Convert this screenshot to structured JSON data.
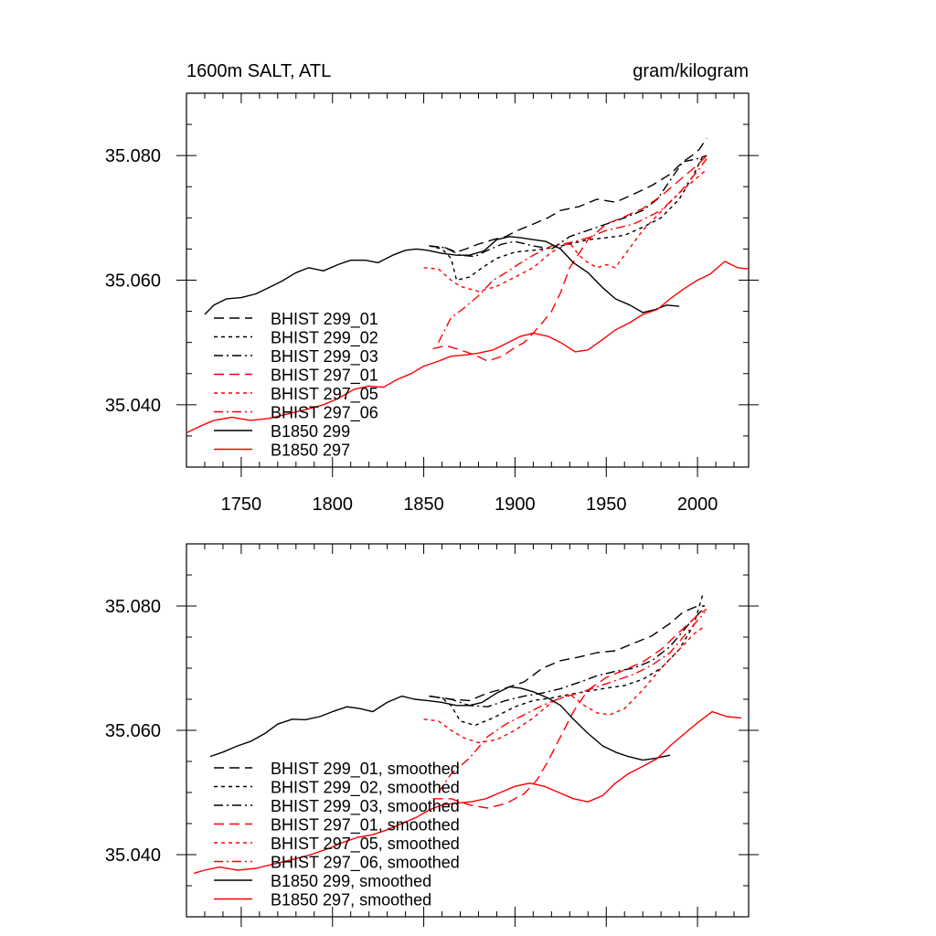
{
  "chart_data": [
    {
      "type": "line",
      "title": "1600m SALT, ATL",
      "units": "gram/kilogram",
      "xlim": [
        1720,
        2028
      ],
      "ylim": [
        35.03,
        35.09
      ],
      "xticks": [
        1750,
        1800,
        1850,
        1900,
        1950,
        2000
      ],
      "yticks": [
        35.04,
        35.06,
        35.08
      ],
      "ytick_labels": [
        "35.040",
        "35.060",
        "35.080"
      ],
      "show_xtick_labels": true,
      "legend_position": "bottom-left",
      "series": [
        {
          "name": "BHIST 299_01",
          "color": "#000000",
          "dash": "long",
          "x": [
            1853,
            1862,
            1868,
            1873,
            1880,
            1888,
            1895,
            1900,
            1910,
            1918,
            1925,
            1935,
            1945,
            1955,
            1965,
            1975,
            1985,
            1992,
            1997,
            2001,
            2005
          ],
          "y": [
            35.0655,
            35.0652,
            35.0645,
            35.065,
            35.0658,
            35.0665,
            35.067,
            35.0678,
            35.069,
            35.07,
            35.0712,
            35.0718,
            35.073,
            35.0725,
            35.0738,
            35.0752,
            35.077,
            35.079,
            35.08,
            35.081,
            35.0828
          ]
        },
        {
          "name": "BHIST 299_02",
          "color": "#000000",
          "dash": "short",
          "x": [
            1853,
            1860,
            1865,
            1868,
            1875,
            1882,
            1890,
            1900,
            1910,
            1920,
            1930,
            1940,
            1950,
            1960,
            1970,
            1980,
            1990,
            1998,
            2003
          ],
          "y": [
            35.0655,
            35.065,
            35.0635,
            35.06,
            35.0605,
            35.062,
            35.0635,
            35.0645,
            35.0648,
            35.0652,
            35.0658,
            35.0665,
            35.0668,
            35.0672,
            35.0685,
            35.07,
            35.073,
            35.077,
            35.08
          ]
        },
        {
          "name": "BHIST 299_03",
          "color": "#000000",
          "dash": "dashdot",
          "x": [
            1853,
            1862,
            1870,
            1878,
            1885,
            1893,
            1900,
            1910,
            1920,
            1930,
            1940,
            1950,
            1960,
            1970,
            1978,
            1985,
            1992,
            2000,
            2005
          ],
          "y": [
            35.0655,
            35.0652,
            35.064,
            35.0638,
            35.0648,
            35.0658,
            35.0662,
            35.0655,
            35.065,
            35.067,
            35.068,
            35.069,
            35.07,
            35.0712,
            35.073,
            35.076,
            35.079,
            35.0795,
            35.08
          ]
        },
        {
          "name": "BHIST 297_01",
          "color": "#ff0000",
          "dash": "long",
          "x": [
            1855,
            1862,
            1870,
            1878,
            1885,
            1893,
            1900,
            1905,
            1910,
            1915,
            1920,
            1925,
            1930,
            1940,
            1950,
            1960,
            1970,
            1980,
            1990,
            2000,
            2005
          ],
          "y": [
            35.049,
            35.0495,
            35.0488,
            35.048,
            35.047,
            35.0478,
            35.0492,
            35.05,
            35.0515,
            35.0532,
            35.055,
            35.058,
            35.062,
            35.0665,
            35.069,
            35.0702,
            35.0715,
            35.0735,
            35.076,
            35.0785,
            35.08
          ]
        },
        {
          "name": "BHIST 297_05",
          "color": "#ff0000",
          "dash": "short",
          "x": [
            1850,
            1858,
            1865,
            1870,
            1880,
            1890,
            1900,
            1910,
            1920,
            1930,
            1935,
            1940,
            1945,
            1950,
            1955,
            1960,
            1970,
            1980,
            1990,
            1998,
            2004
          ],
          "y": [
            35.062,
            35.0618,
            35.06,
            35.059,
            35.0582,
            35.059,
            35.0605,
            35.062,
            35.0645,
            35.066,
            35.064,
            35.0628,
            35.062,
            35.0625,
            35.062,
            35.064,
            35.068,
            35.071,
            35.074,
            35.076,
            35.0775
          ]
        },
        {
          "name": "BHIST 297_06",
          "color": "#ff0000",
          "dash": "dashdot",
          "x": [
            1858,
            1865,
            1872,
            1880,
            1888,
            1895,
            1900,
            1910,
            1920,
            1930,
            1940,
            1950,
            1958,
            1965,
            1972,
            1980,
            1990,
            2000,
            2005
          ],
          "y": [
            35.05,
            35.054,
            35.0555,
            35.0575,
            35.06,
            35.0612,
            35.0622,
            35.064,
            35.0655,
            35.066,
            35.0668,
            35.068,
            35.0685,
            35.069,
            35.07,
            35.0712,
            35.074,
            35.0775,
            35.0795
          ]
        },
        {
          "name": "B1850 299",
          "color": "#000000",
          "dash": "solid",
          "x": [
            1730,
            1735,
            1742,
            1750,
            1758,
            1765,
            1772,
            1780,
            1787,
            1795,
            1803,
            1810,
            1818,
            1825,
            1833,
            1840,
            1846,
            1852,
            1860,
            1868,
            1875,
            1883,
            1890,
            1897,
            1903,
            1910,
            1917,
            1925,
            1932,
            1940,
            1948,
            1955,
            1963,
            1970,
            1977,
            1983,
            1990
          ],
          "y": [
            35.0545,
            35.056,
            35.057,
            35.0572,
            35.0578,
            35.0588,
            35.0598,
            35.0612,
            35.062,
            35.0615,
            35.0625,
            35.0632,
            35.0632,
            35.0628,
            35.064,
            35.0648,
            35.065,
            35.0648,
            35.0643,
            35.064,
            35.064,
            35.0647,
            35.0665,
            35.067,
            35.0668,
            35.0665,
            35.0662,
            35.065,
            35.0628,
            35.0612,
            35.0588,
            35.057,
            35.056,
            35.0548,
            35.0553,
            35.056,
            35.0558
          ]
        },
        {
          "name": "B1850 297",
          "color": "#ff0000",
          "dash": "solid",
          "x": [
            1720,
            1727,
            1735,
            1745,
            1755,
            1765,
            1775,
            1785,
            1795,
            1803,
            1812,
            1820,
            1828,
            1835,
            1843,
            1850,
            1858,
            1865,
            1873,
            1880,
            1888,
            1895,
            1903,
            1910,
            1918,
            1925,
            1933,
            1940,
            1948,
            1955,
            1963,
            1970,
            1978,
            1985,
            1992,
            2000,
            2007,
            2015,
            2022,
            2028
          ],
          "y": [
            35.0355,
            35.0365,
            35.0375,
            35.038,
            35.0375,
            35.0378,
            35.0385,
            35.0392,
            35.04,
            35.041,
            35.0425,
            35.043,
            35.0428,
            35.044,
            35.045,
            35.0462,
            35.047,
            35.0478,
            35.048,
            35.0483,
            35.0488,
            35.0498,
            35.051,
            35.0515,
            35.051,
            35.05,
            35.0485,
            35.0488,
            35.0505,
            35.052,
            35.0532,
            35.0545,
            35.0553,
            35.057,
            35.0585,
            35.06,
            35.061,
            35.063,
            35.062,
            35.0618
          ]
        }
      ]
    },
    {
      "type": "line",
      "title": "",
      "units": "",
      "xlim": [
        1720,
        2028
      ],
      "ylim": [
        35.03,
        35.09
      ],
      "xticks": [
        1750,
        1800,
        1850,
        1900,
        1950,
        2000
      ],
      "yticks": [
        35.04,
        35.06,
        35.08
      ],
      "ytick_labels": [
        "35.040",
        "35.060",
        "35.080"
      ],
      "show_xtick_labels": false,
      "legend_position": "bottom-left",
      "series": [
        {
          "name": "BHIST 299_01, smoothed",
          "color": "#000000",
          "dash": "long",
          "x": [
            1853,
            1865,
            1875,
            1885,
            1895,
            1905,
            1915,
            1925,
            1935,
            1945,
            1955,
            1965,
            1975,
            1985,
            1992,
            2000,
            2004
          ],
          "y": [
            35.0655,
            35.065,
            35.0648,
            35.066,
            35.0668,
            35.0678,
            35.07,
            35.0712,
            35.0718,
            35.0725,
            35.0728,
            35.074,
            35.0752,
            35.0772,
            35.079,
            35.08,
            35.08
          ]
        },
        {
          "name": "BHIST 299_02, smoothed",
          "color": "#000000",
          "dash": "short",
          "x": [
            1853,
            1860,
            1865,
            1870,
            1878,
            1888,
            1900,
            1910,
            1920,
            1930,
            1940,
            1950,
            1960,
            1970,
            1980,
            1990,
            1998,
            2003
          ],
          "y": [
            35.0655,
            35.0652,
            35.064,
            35.0615,
            35.0608,
            35.062,
            35.0638,
            35.0648,
            35.0652,
            35.0658,
            35.0663,
            35.0668,
            35.0672,
            35.0682,
            35.07,
            35.073,
            35.077,
            35.082
          ]
        },
        {
          "name": "BHIST 299_03, smoothed",
          "color": "#000000",
          "dash": "dashdot",
          "x": [
            1853,
            1865,
            1875,
            1885,
            1895,
            1905,
            1915,
            1925,
            1935,
            1945,
            1955,
            1965,
            1975,
            1985,
            1995,
            2003
          ],
          "y": [
            35.0655,
            35.065,
            35.064,
            35.0638,
            35.0648,
            35.0655,
            35.066,
            35.0667,
            35.0677,
            35.0688,
            35.0695,
            35.07,
            35.0712,
            35.0735,
            35.077,
            35.0795
          ]
        },
        {
          "name": "BHIST 297_01, smoothed",
          "color": "#ff0000",
          "dash": "long",
          "x": [
            1855,
            1865,
            1875,
            1885,
            1895,
            1905,
            1912,
            1918,
            1925,
            1932,
            1940,
            1950,
            1960,
            1970,
            1980,
            1990,
            2000,
            2005
          ],
          "y": [
            35.049,
            35.049,
            35.048,
            35.0475,
            35.0482,
            35.0498,
            35.052,
            35.055,
            35.059,
            35.063,
            35.0665,
            35.0685,
            35.0697,
            35.071,
            35.073,
            35.0758,
            35.0785,
            35.0795
          ]
        },
        {
          "name": "BHIST 297_05, smoothed",
          "color": "#ff0000",
          "dash": "short",
          "x": [
            1850,
            1858,
            1865,
            1872,
            1880,
            1890,
            1900,
            1910,
            1920,
            1930,
            1938,
            1945,
            1952,
            1960,
            1970,
            1980,
            1990,
            1998,
            2004
          ],
          "y": [
            35.0618,
            35.0615,
            35.06,
            35.0588,
            35.058,
            35.0585,
            35.06,
            35.062,
            35.0645,
            35.0658,
            35.064,
            35.0628,
            35.0625,
            35.0635,
            35.0665,
            35.07,
            35.073,
            35.0755,
            35.0768
          ]
        },
        {
          "name": "BHIST 297_06, smoothed",
          "color": "#ff0000",
          "dash": "dashdot",
          "x": [
            1858,
            1865,
            1875,
            1885,
            1895,
            1905,
            1915,
            1925,
            1935,
            1945,
            1955,
            1965,
            1975,
            1985,
            1995,
            2004
          ],
          "y": [
            35.05,
            35.053,
            35.0555,
            35.059,
            35.061,
            35.0625,
            35.064,
            35.0652,
            35.066,
            35.067,
            35.068,
            35.069,
            35.0705,
            35.0725,
            35.076,
            35.079
          ]
        },
        {
          "name": "B1850 299, smoothed",
          "color": "#000000",
          "dash": "solid",
          "x": [
            1733,
            1740,
            1748,
            1755,
            1763,
            1770,
            1778,
            1785,
            1793,
            1800,
            1808,
            1815,
            1822,
            1830,
            1838,
            1845,
            1852,
            1860,
            1868,
            1875,
            1882,
            1890,
            1897,
            1903,
            1910,
            1918,
            1925,
            1932,
            1940,
            1948,
            1955,
            1962,
            1970,
            1977,
            1985
          ],
          "y": [
            35.0558,
            35.0565,
            35.0575,
            35.0582,
            35.0595,
            35.061,
            35.0618,
            35.0617,
            35.0622,
            35.063,
            35.0638,
            35.0635,
            35.063,
            35.0645,
            35.0655,
            35.065,
            35.0648,
            35.0645,
            35.064,
            35.064,
            35.0645,
            35.066,
            35.067,
            35.0668,
            35.0662,
            35.0652,
            35.064,
            35.0618,
            35.0595,
            35.0575,
            35.0565,
            35.0558,
            35.0552,
            35.0555,
            35.056
          ]
        },
        {
          "name": "B1850 297, smoothed",
          "color": "#ff0000",
          "dash": "solid",
          "x": [
            1724,
            1730,
            1738,
            1748,
            1758,
            1768,
            1778,
            1788,
            1798,
            1806,
            1814,
            1822,
            1830,
            1838,
            1846,
            1853,
            1860,
            1868,
            1876,
            1884,
            1892,
            1900,
            1908,
            1916,
            1924,
            1932,
            1940,
            1948,
            1955,
            1962,
            1970,
            1978,
            1985,
            1993,
            2000,
            2008,
            2016,
            2024
          ],
          "y": [
            35.037,
            35.0375,
            35.038,
            35.0375,
            35.0378,
            35.0385,
            35.0392,
            35.04,
            35.041,
            35.042,
            35.0428,
            35.0432,
            35.044,
            35.045,
            35.046,
            35.0472,
            35.048,
            35.0483,
            35.0485,
            35.049,
            35.05,
            35.051,
            35.0515,
            35.051,
            35.05,
            35.049,
            35.0485,
            35.0495,
            35.0515,
            35.053,
            35.0542,
            35.0555,
            35.0575,
            35.0595,
            35.0612,
            35.063,
            35.0622,
            35.062
          ]
        }
      ]
    }
  ]
}
